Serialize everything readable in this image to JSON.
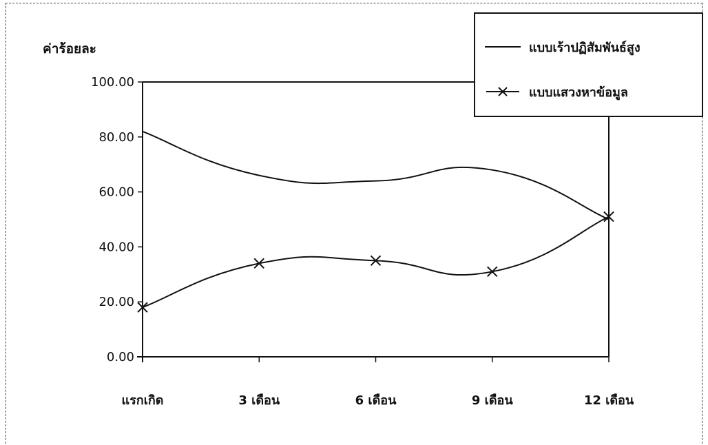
{
  "chart_data": {
    "type": "line",
    "ylabel": "ค่าร้อยละ",
    "xlabel": "",
    "categories": [
      "แรกเกิด",
      "3 เดือน",
      "6 เดือน",
      "9 เดือน",
      "12 เดือน"
    ],
    "ylim": [
      0,
      100
    ],
    "yticks": [
      "0.00",
      "20.00",
      "40.00",
      "60.00",
      "80.00",
      "100.00"
    ],
    "grid": false,
    "legend_position": "top-right",
    "series": [
      {
        "name": "แบบเร้าปฏิสัมพันธ์สูง",
        "values": [
          82,
          66,
          64,
          68,
          50
        ],
        "marker": "none",
        "color": "#111111"
      },
      {
        "name": "แบบแสวงหาข้อมูล",
        "values": [
          18,
          34,
          35,
          31,
          51
        ],
        "marker": "x",
        "color": "#111111"
      }
    ],
    "legend_symbols": [
      "———",
      "–x–"
    ]
  }
}
